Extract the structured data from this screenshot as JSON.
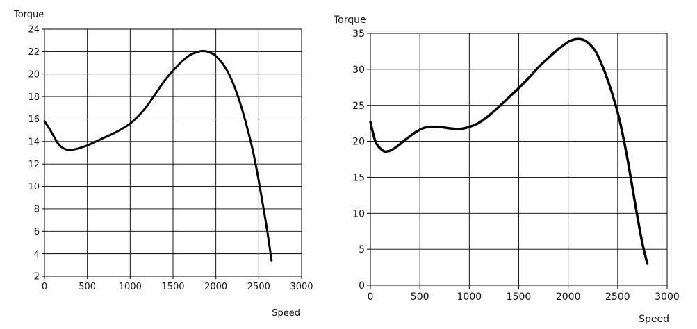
{
  "chart_data": [
    {
      "type": "line",
      "title": "",
      "ylabel": "Torque",
      "xlabel": "Speed",
      "xlim": [
        0,
        3000
      ],
      "ylim": [
        2,
        24
      ],
      "xticks": [
        0,
        500,
        1000,
        1500,
        2000,
        2500,
        3000
      ],
      "yticks": [
        2,
        4,
        6,
        8,
        10,
        12,
        14,
        16,
        18,
        20,
        22,
        24
      ],
      "xtick_labels": [
        "0",
        "500",
        "1000",
        "1500",
        "2000",
        "2500",
        "3000"
      ],
      "ytick_labels": [
        "2",
        "4",
        "6",
        "8",
        "10",
        "12",
        "14",
        "16",
        "18",
        "20",
        "22",
        "24"
      ],
      "grid": true,
      "legend": "none",
      "line_color": "#000000",
      "series": [
        {
          "x": [
            0,
            60,
            120,
            160,
            200,
            250,
            300,
            350,
            400,
            500,
            600,
            700,
            800,
            900,
            1000,
            1100,
            1200,
            1300,
            1400,
            1500,
            1600,
            1700,
            1800,
            1850,
            1900,
            1950,
            2000,
            2100,
            2200,
            2300,
            2400,
            2450,
            2500,
            2550,
            2600,
            2650
          ],
          "y": [
            15.8,
            15.1,
            14.3,
            13.8,
            13.5,
            13.3,
            13.25,
            13.3,
            13.4,
            13.65,
            14.0,
            14.35,
            14.7,
            15.1,
            15.6,
            16.3,
            17.2,
            18.3,
            19.4,
            20.3,
            21.1,
            21.7,
            22.0,
            22.05,
            22.0,
            21.85,
            21.6,
            20.7,
            19.2,
            17.0,
            14.2,
            12.5,
            10.5,
            8.3,
            6.0,
            3.4
          ]
        }
      ]
    },
    {
      "type": "line",
      "title": "",
      "ylabel": "Torque",
      "xlabel": "Speed",
      "xlim": [
        0,
        3000
      ],
      "ylim": [
        0,
        35
      ],
      "xticks": [
        0,
        500,
        1000,
        1500,
        2000,
        2500,
        3000
      ],
      "yticks": [
        0,
        5,
        10,
        15,
        20,
        25,
        30,
        35
      ],
      "xtick_labels": [
        "0",
        "500",
        "1000",
        "1500",
        "2000",
        "2500",
        "3000"
      ],
      "ytick_labels": [
        "0",
        "5",
        "10",
        "15",
        "20",
        "25",
        "30",
        "35"
      ],
      "grid": true,
      "legend": "none",
      "line_color": "#000000",
      "series": [
        {
          "x": [
            0,
            20,
            50,
            80,
            110,
            140,
            170,
            200,
            250,
            300,
            350,
            400,
            450,
            500,
            550,
            600,
            700,
            800,
            900,
            1000,
            1100,
            1200,
            1300,
            1400,
            1500,
            1600,
            1700,
            1800,
            1900,
            2000,
            2050,
            2100,
            2150,
            2200,
            2250,
            2300,
            2400,
            2500,
            2550,
            2600,
            2650,
            2700,
            2750,
            2800
          ],
          "y": [
            22.7,
            21.5,
            20.0,
            19.3,
            18.9,
            18.6,
            18.6,
            18.7,
            19.1,
            19.6,
            20.2,
            20.7,
            21.2,
            21.6,
            21.9,
            22.0,
            22.0,
            21.8,
            21.7,
            22.0,
            22.6,
            23.6,
            24.8,
            26.1,
            27.4,
            28.8,
            30.3,
            31.6,
            32.8,
            33.8,
            34.1,
            34.2,
            34.1,
            33.7,
            33.0,
            31.9,
            28.5,
            24.0,
            21.0,
            17.5,
            13.5,
            9.5,
            5.8,
            3.0
          ]
        }
      ]
    }
  ]
}
